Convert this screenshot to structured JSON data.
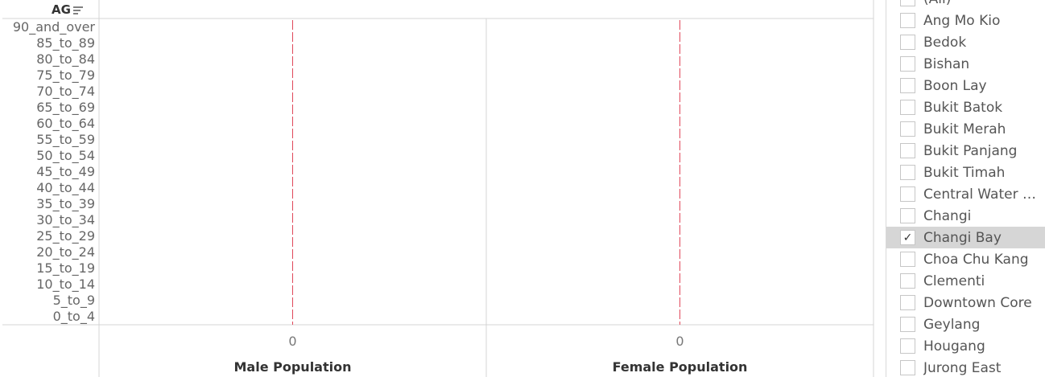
{
  "chart_data": {
    "type": "bar",
    "row_header": "AG",
    "categories": [
      "90_and_over",
      "85_to_89",
      "80_to_84",
      "75_to_79",
      "70_to_74",
      "65_to_69",
      "60_to_64",
      "55_to_59",
      "50_to_54",
      "45_to_49",
      "40_to_44",
      "35_to_39",
      "30_to_34",
      "25_to_29",
      "20_to_24",
      "15_to_19",
      "10_to_14",
      "5_to_9",
      "0_to_4"
    ],
    "series": [
      {
        "name": "Male Population",
        "values": [
          0,
          0,
          0,
          0,
          0,
          0,
          0,
          0,
          0,
          0,
          0,
          0,
          0,
          0,
          0,
          0,
          0,
          0,
          0
        ]
      },
      {
        "name": "Female Population",
        "values": [
          0,
          0,
          0,
          0,
          0,
          0,
          0,
          0,
          0,
          0,
          0,
          0,
          0,
          0,
          0,
          0,
          0,
          0,
          0
        ]
      }
    ],
    "panels": [
      {
        "xlabel": "Male Population",
        "tick": "0"
      },
      {
        "xlabel": "Female Population",
        "tick": "0"
      }
    ],
    "reference_line_color": "#e0485a",
    "grid": false
  },
  "filter": {
    "items": [
      {
        "label": "(All)",
        "checked": false
      },
      {
        "label": "Ang Mo Kio",
        "checked": false
      },
      {
        "label": "Bedok",
        "checked": false
      },
      {
        "label": "Bishan",
        "checked": false
      },
      {
        "label": "Boon Lay",
        "checked": false
      },
      {
        "label": "Bukit Batok",
        "checked": false
      },
      {
        "label": "Bukit Merah",
        "checked": false
      },
      {
        "label": "Bukit Panjang",
        "checked": false
      },
      {
        "label": "Bukit Timah",
        "checked": false
      },
      {
        "label": "Central Water Ca..",
        "checked": false
      },
      {
        "label": "Changi",
        "checked": false
      },
      {
        "label": "Changi Bay",
        "checked": true
      },
      {
        "label": "Choa Chu Kang",
        "checked": false
      },
      {
        "label": "Clementi",
        "checked": false
      },
      {
        "label": "Downtown Core",
        "checked": false
      },
      {
        "label": "Geylang",
        "checked": false
      },
      {
        "label": "Hougang",
        "checked": false
      },
      {
        "label": "Jurong East",
        "checked": false
      }
    ],
    "check_glyph": "✓"
  }
}
